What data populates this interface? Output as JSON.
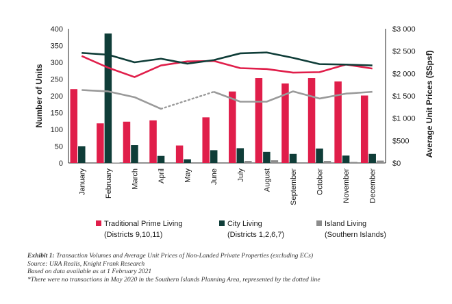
{
  "chart_data": {
    "type": "bar",
    "categories": [
      "January",
      "February",
      "March",
      "April",
      "May",
      "June",
      "July",
      "August",
      "September",
      "October",
      "November",
      "December"
    ],
    "ylabel": "Number of Units",
    "y2label": "Average Unit Prices ($Spsf)",
    "ylim": [
      0,
      400
    ],
    "yticks": [
      "0",
      "50",
      "100",
      "150",
      "200",
      "250",
      "300",
      "350",
      "400"
    ],
    "y2lim": [
      0,
      3000
    ],
    "y2ticks": [
      "$0",
      "$500",
      "$1 000",
      "$1 500",
      "$2 000",
      "$2 500",
      "$3 000"
    ],
    "grid": false,
    "legend_placement": "bottom",
    "series": [
      {
        "name": "Traditional Prime Living",
        "sub": "(Districts 9,10,11)",
        "kind": "bar",
        "axis": "left",
        "color": "#e01e4a",
        "values": [
          220,
          118,
          123,
          127,
          52,
          136,
          213,
          253,
          237,
          253,
          243,
          201
        ]
      },
      {
        "name": "City Living",
        "sub": "(Districts 1,2,6,7)",
        "kind": "bar",
        "axis": "left",
        "color": "#0f3d38",
        "values": [
          50,
          386,
          53,
          21,
          11,
          38,
          44,
          33,
          27,
          43,
          22,
          27
        ]
      },
      {
        "name": "Island Living",
        "sub": "(Southern Islands)",
        "kind": "bar",
        "axis": "left",
        "color": "#8c8c8c",
        "values": [
          2,
          1,
          0,
          2,
          null,
          2,
          6,
          8,
          2,
          6,
          3,
          7
        ]
      },
      {
        "name": "Traditional Prime Living",
        "kind": "line",
        "axis": "right",
        "color": "#e01e4a",
        "values": [
          2390,
          2130,
          1920,
          2180,
          2270,
          2280,
          2120,
          2100,
          2020,
          2030,
          2200,
          2110
        ]
      },
      {
        "name": "City Living",
        "kind": "line",
        "axis": "right",
        "color": "#0f3d38",
        "values": [
          2460,
          2420,
          2250,
          2330,
          2220,
          2300,
          2450,
          2470,
          2350,
          2210,
          2200,
          2180
        ]
      },
      {
        "name": "Island Living",
        "kind": "line",
        "axis": "right",
        "color": "#9a9a9a",
        "values": [
          1630,
          1600,
          1470,
          1210,
          null,
          1590,
          1370,
          1370,
          1600,
          1440,
          1550,
          1590
        ]
      }
    ]
  },
  "caption": {
    "exhibit_label": "Exhibit 1:",
    "exhibit_text": " Transaction Volumes and Average Unit Prices of Non-Landed Private Properties (excluding ECs)",
    "source": "Source: URA Realis, Knight Frank Research",
    "based_on": "Based on data available as at 1 February 2021",
    "note": "*There were no transactions in May 2020 in the Southern Islands Planning Area, represented by the dotted line"
  }
}
